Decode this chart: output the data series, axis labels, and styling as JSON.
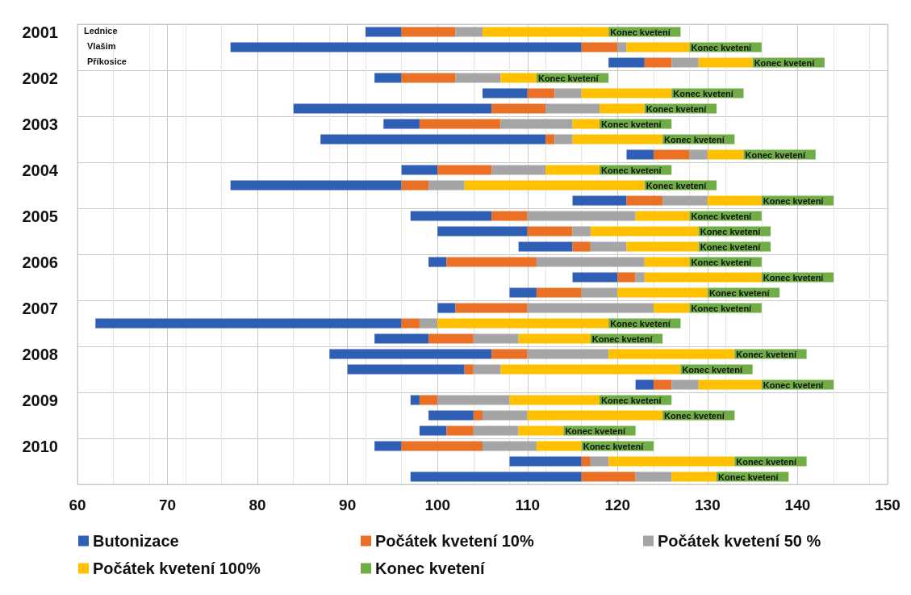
{
  "chart_data": {
    "type": "bar",
    "orientation": "horizontal",
    "categories": [
      "2001",
      null,
      null,
      "2002",
      null,
      null,
      "2003",
      null,
      null,
      "2004",
      null,
      null,
      "2005",
      null,
      null,
      "2006",
      null,
      null,
      "2007",
      null,
      null,
      "2008",
      null,
      null,
      "2009",
      null,
      null,
      "2010",
      null,
      null
    ],
    "series": [
      {
        "name": "Butonizace",
        "color": "#2f5fb5",
        "base": [
          92,
          77,
          119,
          93,
          105,
          84,
          94,
          87,
          121,
          96,
          77,
          115,
          97,
          100,
          109,
          99,
          115,
          108,
          100,
          62,
          93,
          88,
          90,
          122,
          97,
          99,
          98,
          93,
          108,
          97
        ],
        "values": [
          4,
          39,
          4,
          3,
          5,
          22,
          4,
          25,
          3,
          4,
          19,
          6,
          9,
          10,
          6,
          2,
          5,
          3,
          2,
          34,
          6,
          18,
          13,
          2,
          1,
          5,
          3,
          3,
          8,
          19
        ]
      },
      {
        "name": "Počátek kvetení 10%",
        "color": "#e97025",
        "base": [
          96,
          116,
          123,
          96,
          110,
          106,
          98,
          112,
          124,
          100,
          96,
          121,
          106,
          110,
          115,
          101,
          120,
          111,
          102,
          96,
          99,
          106,
          103,
          124,
          98,
          104,
          101,
          96,
          116,
          116
        ],
        "values": [
          6,
          4,
          3,
          6,
          3,
          6,
          9,
          1,
          4,
          6,
          3,
          4,
          4,
          5,
          2,
          10,
          2,
          5,
          8,
          2,
          5,
          4,
          1,
          2,
          2,
          1,
          3,
          9,
          1,
          6
        ]
      },
      {
        "name": "Počátek kvetení 50 %",
        "color": "#a5a5a5",
        "base": [
          102,
          120,
          126,
          102,
          113,
          112,
          107,
          113,
          128,
          106,
          99,
          125,
          110,
          115,
          117,
          111,
          122,
          116,
          110,
          98,
          104,
          110,
          104,
          126,
          100,
          105,
          104,
          105,
          117,
          122
        ],
        "values": [
          3,
          1,
          3,
          5,
          3,
          6,
          8,
          2,
          2,
          6,
          4,
          5,
          12,
          2,
          4,
          12,
          1,
          4,
          14,
          2,
          5,
          9,
          3,
          3,
          8,
          5,
          5,
          6,
          2,
          4
        ]
      },
      {
        "name": "Počátek kvetení 100%",
        "color": "#ffc000",
        "base": [
          105,
          121,
          129,
          107,
          116,
          118,
          115,
          115,
          130,
          112,
          103,
          130,
          122,
          117,
          121,
          123,
          123,
          120,
          124,
          100,
          109,
          119,
          107,
          129,
          108,
          110,
          109,
          111,
          119,
          126
        ],
        "values": [
          14,
          7,
          6,
          4,
          10,
          5,
          3,
          10,
          4,
          6,
          20,
          6,
          6,
          12,
          8,
          5,
          13,
          10,
          4,
          19,
          8,
          14,
          20,
          7,
          10,
          15,
          5,
          5,
          14,
          5
        ]
      },
      {
        "name": "Konec kvetení",
        "color": "#70ad47",
        "base": [
          119,
          128,
          135,
          111,
          126,
          123,
          118,
          125,
          134,
          118,
          123,
          136,
          128,
          129,
          129,
          128,
          136,
          130,
          128,
          119,
          117,
          133,
          127,
          136,
          118,
          125,
          114,
          116,
          133,
          131
        ],
        "values": [
          8,
          8,
          8,
          8,
          8,
          8,
          8,
          8,
          8,
          8,
          8,
          8,
          8,
          8,
          8,
          8,
          8,
          8,
          8,
          8,
          8,
          8,
          8,
          8,
          8,
          8,
          8,
          8,
          8,
          8
        ],
        "value_labels": [
          "Konec kvetení",
          "Konec kvetení",
          "Konec kvetení",
          "Konec kvetení",
          "Konec kvetení",
          "Konec kvetení",
          "Konec kvetení",
          "Konec kvetení",
          "Konec kvetení",
          "Konec kvetení",
          "Konec kvetení",
          "Konec kvetení",
          "Konec kvetení",
          "Konec kvetení",
          "Konec kvetení",
          "Konec kvetení",
          "Konec kvetení",
          "Konec kvetení",
          "Konec kvetení",
          "Konec kvetení",
          "Konec kvetení",
          "Konec kvetení",
          "Konec kvetení",
          "Konec kvetení",
          "Konec kvetení",
          "Konec kvetení",
          "Konec kvetení",
          "Konec kvetení",
          "Konec kvetení",
          "Konec kvetení"
        ]
      }
    ],
    "xlim": [
      60,
      150
    ],
    "xticks": [
      60,
      70,
      80,
      90,
      100,
      110,
      120,
      130,
      140,
      150
    ],
    "grid": true,
    "legend": "bottom",
    "annotations": [
      "Lednice",
      "Vlašim",
      "Příkosice"
    ]
  }
}
